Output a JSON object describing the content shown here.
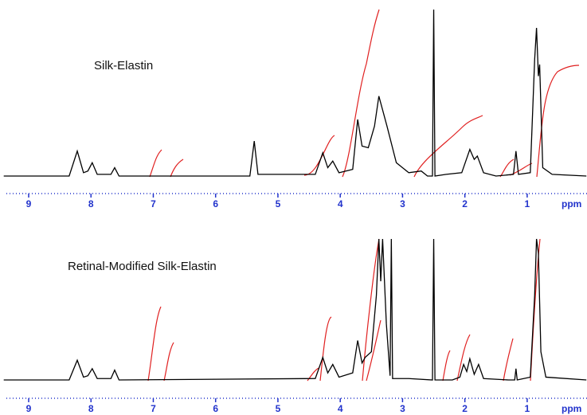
{
  "chart_data": [
    {
      "type": "line",
      "title": "Silk-Elastin",
      "xlabel": "ppm",
      "color": "#000000",
      "axis_color": "#2233cc",
      "x": [
        9.4,
        8.35,
        8.22,
        8.12,
        8.05,
        7.98,
        7.9,
        7.68,
        7.62,
        7.55,
        5.45,
        5.38,
        5.32,
        4.4,
        4.28,
        4.2,
        4.12,
        4.02,
        3.8,
        3.72,
        3.65,
        3.55,
        3.45,
        3.38,
        3.25,
        3.1,
        2.9,
        2.7,
        2.6,
        2.52,
        2.5,
        2.48,
        2.3,
        2.05,
        1.92,
        1.85,
        1.8,
        1.7,
        1.5,
        1.22,
        1.18,
        1.14,
        0.95,
        0.88,
        0.85,
        0.82,
        0.8,
        0.75,
        0.6,
        0.05
      ],
      "values": [
        0,
        0,
        15,
        2,
        3,
        8,
        1,
        1,
        5,
        0,
        0,
        21,
        1,
        1,
        14,
        5,
        9,
        2,
        4,
        34,
        18,
        17,
        30,
        48,
        30,
        8,
        2,
        3,
        0,
        0,
        100,
        0,
        1,
        2,
        16,
        10,
        12,
        2,
        0,
        1,
        15,
        1,
        2,
        70,
        89,
        60,
        67,
        5,
        1,
        0
      ],
      "xlim": [
        9.46,
        0.04
      ],
      "ylim": [
        0,
        100
      ],
      "xticks": [
        9,
        8,
        7,
        6,
        5,
        4,
        3,
        2,
        1
      ]
    },
    {
      "type": "line",
      "title": "Retinal-Modified Silk-Elastin",
      "xlabel": "ppm",
      "color": "#000000",
      "axis_color": "#2233cc",
      "x": [
        9.4,
        8.35,
        8.22,
        8.12,
        8.05,
        7.98,
        7.9,
        7.68,
        7.62,
        7.55,
        4.4,
        4.28,
        4.2,
        4.12,
        4.02,
        3.8,
        3.72,
        3.65,
        3.6,
        3.5,
        3.42,
        3.38,
        3.35,
        3.32,
        3.26,
        3.2,
        3.18,
        3.16,
        2.9,
        2.52,
        2.5,
        2.48,
        2.2,
        2.08,
        2.02,
        1.97,
        1.92,
        1.85,
        1.78,
        1.7,
        1.3,
        1.2,
        1.18,
        1.16,
        0.95,
        0.88,
        0.85,
        0.82,
        0.78,
        0.7,
        0.05
      ],
      "values": [
        0,
        0,
        14,
        2,
        3,
        8,
        1,
        1,
        7,
        0,
        1,
        16,
        5,
        11,
        2,
        5,
        28,
        12,
        16,
        20,
        60,
        100,
        70,
        100,
        40,
        3,
        100,
        1,
        1,
        0,
        100,
        0,
        0,
        2,
        11,
        6,
        15,
        4,
        11,
        1,
        0,
        0,
        8,
        0,
        2,
        60,
        100,
        90,
        20,
        2,
        0
      ],
      "xlim": [
        9.46,
        0.04
      ],
      "ylim": [
        0,
        100
      ],
      "xticks": [
        9,
        8,
        7,
        6,
        5,
        4,
        3,
        2,
        1
      ]
    }
  ]
}
